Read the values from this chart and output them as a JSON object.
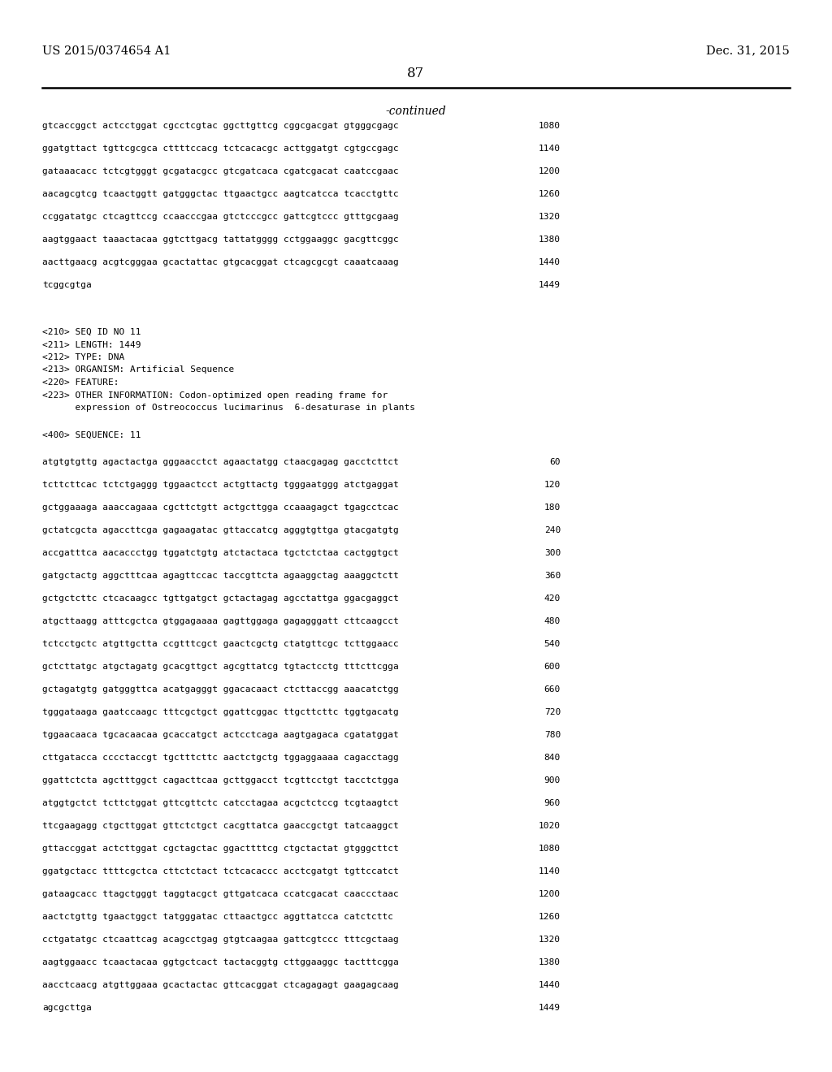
{
  "page_left_header": "US 2015/0374654 A1",
  "page_right_header": "Dec. 31, 2015",
  "page_number": "87",
  "continued_label": "-continued",
  "sequence_lines_top": [
    [
      "gtcaccggct actcctggat cgcctcgtac ggcttgttcg cggcgacgat gtgggcgagc",
      "1080"
    ],
    [
      "ggatgttact tgttcgcgca cttttccacg tctcacacgc acttggatgt cgtgccgagc",
      "1140"
    ],
    [
      "gataaacacc tctcgtgggt gcgatacgcc gtcgatcaca cgatcgacat caatccgaac",
      "1200"
    ],
    [
      "aacagcgtcg tcaactggtt gatgggctac ttgaactgcc aagtcatcca tcacctgttc",
      "1260"
    ],
    [
      "ccggatatgc ctcagttccg ccaacccgaa gtctcccgcc gattcgtccc gtttgcgaag",
      "1320"
    ],
    [
      "aagtggaact taaactacaa ggtcttgacg tattatgggg cctggaaggc gacgttcggc",
      "1380"
    ],
    [
      "aacttgaacg acgtcgggaa gcactattac gtgcacggat ctcagcgcgt caaatcaaag",
      "1440"
    ],
    [
      "tcggcgtga",
      "1449"
    ]
  ],
  "metadata_lines": [
    "<210> SEQ ID NO 11",
    "<211> LENGTH: 1449",
    "<212> TYPE: DNA",
    "<213> ORGANISM: Artificial Sequence",
    "<220> FEATURE:",
    "<223> OTHER INFORMATION: Codon-optimized open reading frame for",
    "      expression of Ostreococcus lucimarinus  6-desaturase in plants"
  ],
  "sequence_label": "<400> SEQUENCE: 11",
  "sequence_lines_bottom": [
    [
      "atgtgtgttg agactactga gggaacctct agaactatgg ctaacgagag gacctcttct",
      "60"
    ],
    [
      "tcttcttcac tctctgaggg tggaactcct actgttactg tgggaatggg atctgaggat",
      "120"
    ],
    [
      "gctggaaaga aaaccagaaa cgcttctgtt actgcttgga ccaaagagct tgagcctcac",
      "180"
    ],
    [
      "gctatcgcta agaccttcga gagaagatac gttaccatcg agggtgttga gtacgatgtg",
      "240"
    ],
    [
      "accgatttca aacaccctgg tggatctgtg atctactaca tgctctctaa cactggtgct",
      "300"
    ],
    [
      "gatgctactg aggctttcaa agagttccac taccgttcta agaaggctag aaaggctctt",
      "360"
    ],
    [
      "gctgctcttc ctcacaagcc tgttgatgct gctactagag agcctattga ggacgaggct",
      "420"
    ],
    [
      "atgcttaagg atttcgctca gtggagaaaa gagttggaga gagagggatt cttcaagcct",
      "480"
    ],
    [
      "tctcctgctc atgttgctta ccgtttcgct gaactcgctg ctatgttcgc tcttggaacc",
      "540"
    ],
    [
      "gctcttatgc atgctagatg gcacgttgct agcgttatcg tgtactcctg tttcttcgga",
      "600"
    ],
    [
      "gctagatgtg gatgggttca acatgagggt ggacacaact ctcttaccgg aaacatctgg",
      "660"
    ],
    [
      "tgggataaga gaatccaagc tttcgctgct ggattcggac ttgcttcttc tggtgacatg",
      "720"
    ],
    [
      "tggaacaaca tgcacaacaa gcaccatgct actcctcaga aagtgagaca cgatatggat",
      "780"
    ],
    [
      "cttgatacca cccctaccgt tgctttcttc aactctgctg tggaggaaaa cagacctagg",
      "840"
    ],
    [
      "ggattctcta agctttggct cagacttcaa gcttggacct tcgttcctgt tacctctgga",
      "900"
    ],
    [
      "atggtgctct tcttctggat gttcgttctc catcctagaa acgctctccg tcgtaagtct",
      "960"
    ],
    [
      "ttcgaagagg ctgcttggat gttctctgct cacgttatca gaaccgctgt tatcaaggct",
      "1020"
    ],
    [
      "gttaccggat actcttggat cgctagctac ggacttttcg ctgctactat gtgggcttct",
      "1080"
    ],
    [
      "ggatgctacc ttttcgctca cttctctact tctcacaccc acctcgatgt tgttccatct",
      "1140"
    ],
    [
      "gataagcacc ttagctgggt taggtacgct gttgatcaca ccatcgacat caaccctaac",
      "1200"
    ],
    [
      "aactctgttg tgaactggct tatgggatac cttaactgcc aggttatcca catctcttc",
      "1260"
    ],
    [
      "cctgatatgc ctcaattcag acagcctgag gtgtcaagaa gattcgtccc tttcgctaag",
      "1320"
    ],
    [
      "aagtggaacc tcaactacaa ggtgctcact tactacggtg cttggaaggc tactttcgga",
      "1380"
    ],
    [
      "aacctcaacg atgttggaaa gcactactac gttcacggat ctcagagagt gaagagcaag",
      "1440"
    ],
    [
      "agcgcttga",
      "1449"
    ]
  ]
}
